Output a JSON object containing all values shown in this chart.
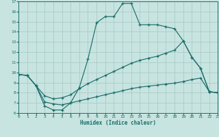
{
  "xlabel": "Humidex (Indice chaleur)",
  "bg_color": "#c8e4e0",
  "grid_color": "#a8ccca",
  "line_color": "#1a6e6a",
  "xlim": [
    0,
    23
  ],
  "ylim": [
    6,
    17
  ],
  "xticks": [
    0,
    1,
    2,
    3,
    4,
    5,
    6,
    7,
    8,
    9,
    10,
    11,
    12,
    13,
    14,
    15,
    16,
    17,
    18,
    19,
    20,
    21,
    22,
    23
  ],
  "yticks": [
    6,
    7,
    8,
    9,
    10,
    11,
    12,
    13,
    14,
    15,
    16,
    17
  ],
  "line1_x": [
    0,
    1,
    2,
    3,
    4,
    5,
    6,
    7,
    8,
    9,
    10,
    11,
    12,
    13,
    14,
    15,
    16,
    17,
    18,
    19,
    20,
    21,
    22,
    23
  ],
  "line1_y": [
    9.8,
    9.7,
    8.7,
    6.7,
    6.3,
    6.3,
    7.0,
    8.5,
    11.3,
    14.9,
    15.5,
    15.5,
    16.8,
    16.8,
    14.7,
    14.7,
    14.7,
    14.5,
    14.3,
    13.1,
    11.5,
    10.4,
    8.1,
    8.0
  ],
  "line2_x": [
    0,
    1,
    2,
    3,
    4,
    5,
    6,
    7,
    8,
    9,
    10,
    11,
    12,
    13,
    14,
    15,
    16,
    17,
    18,
    19,
    20,
    21,
    22,
    23
  ],
  "line2_y": [
    9.8,
    9.7,
    8.7,
    7.7,
    7.4,
    7.5,
    7.8,
    8.4,
    8.9,
    9.3,
    9.7,
    10.1,
    10.5,
    10.9,
    11.2,
    11.4,
    11.6,
    11.9,
    12.2,
    13.1,
    11.5,
    10.4,
    8.1,
    8.0
  ],
  "line3_x": [
    0,
    1,
    2,
    3,
    4,
    5,
    6,
    7,
    8,
    9,
    10,
    11,
    12,
    13,
    14,
    15,
    16,
    17,
    18,
    19,
    20,
    21,
    22,
    23
  ],
  "line3_y": [
    9.8,
    9.7,
    8.7,
    7.1,
    6.9,
    6.8,
    7.0,
    7.2,
    7.4,
    7.6,
    7.8,
    8.0,
    8.2,
    8.4,
    8.55,
    8.65,
    8.75,
    8.85,
    8.95,
    9.1,
    9.3,
    9.45,
    8.1,
    8.0
  ]
}
